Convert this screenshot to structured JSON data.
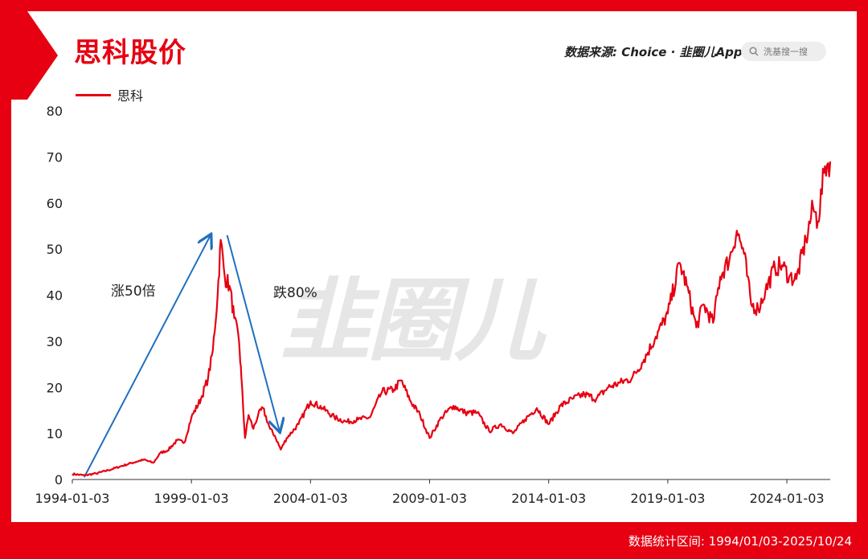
{
  "header": {
    "title": "思科股价",
    "source": "数据来源: Choice · 韭圈儿App",
    "search_placeholder": "洗基搜一搜",
    "icons": [
      "search-icon"
    ]
  },
  "footer": {
    "range": "数据统计区间: 1994/01/03-2025/10/24"
  },
  "watermark": "韭圈儿",
  "colors": {
    "brand": "#e60012",
    "arrow": "#1f6fbf"
  },
  "chart_data": {
    "type": "line",
    "xlabel": "",
    "ylabel": "",
    "ylim": [
      0,
      80
    ],
    "yticks": [
      0,
      10,
      20,
      30,
      40,
      50,
      60,
      70,
      80
    ],
    "xticks": [
      "1994-01-03",
      "1999-01-03",
      "2004-01-03",
      "2009-01-03",
      "2014-01-03",
      "2019-01-03",
      "2024-01-03"
    ],
    "xlim": [
      1994.0,
      2025.82
    ],
    "legend": "top-left",
    "grid": false,
    "series": [
      {
        "name": "思科",
        "points": [
          [
            1994.0,
            1.2
          ],
          [
            1994.5,
            0.9
          ],
          [
            1995.0,
            1.3
          ],
          [
            1995.5,
            2.0
          ],
          [
            1996.0,
            2.8
          ],
          [
            1996.5,
            3.6
          ],
          [
            1997.0,
            4.3
          ],
          [
            1997.4,
            3.6
          ],
          [
            1997.7,
            5.8
          ],
          [
            1998.0,
            6.3
          ],
          [
            1998.4,
            8.5
          ],
          [
            1998.7,
            8.0
          ],
          [
            1999.0,
            13.5
          ],
          [
            1999.4,
            17.5
          ],
          [
            1999.7,
            22.0
          ],
          [
            1999.9,
            28.0
          ],
          [
            2000.1,
            40.0
          ],
          [
            2000.23,
            52.0
          ],
          [
            2000.4,
            44.0
          ],
          [
            2000.6,
            42.0
          ],
          [
            2000.8,
            35.0
          ],
          [
            2001.0,
            30.0
          ],
          [
            2001.1,
            22.0
          ],
          [
            2001.25,
            9.0
          ],
          [
            2001.4,
            14.0
          ],
          [
            2001.6,
            11.0
          ],
          [
            2001.8,
            14.0
          ],
          [
            2002.0,
            15.5
          ],
          [
            2002.3,
            11.0
          ],
          [
            2002.5,
            9.5
          ],
          [
            2002.75,
            6.5
          ],
          [
            2003.0,
            9.0
          ],
          [
            2003.5,
            12.0
          ],
          [
            2004.0,
            17.0
          ],
          [
            2004.5,
            15.5
          ],
          [
            2005.0,
            13.5
          ],
          [
            2005.5,
            12.5
          ],
          [
            2006.0,
            13.0
          ],
          [
            2006.5,
            13.5
          ],
          [
            2007.0,
            19.0
          ],
          [
            2007.5,
            19.5
          ],
          [
            2007.8,
            21.5
          ],
          [
            2008.2,
            17.0
          ],
          [
            2008.6,
            14.0
          ],
          [
            2009.0,
            9.0
          ],
          [
            2009.5,
            13.5
          ],
          [
            2010.0,
            16.0
          ],
          [
            2010.5,
            14.5
          ],
          [
            2011.0,
            14.5
          ],
          [
            2011.5,
            10.5
          ],
          [
            2012.0,
            12.0
          ],
          [
            2012.5,
            10.0
          ],
          [
            2013.0,
            13.0
          ],
          [
            2013.5,
            15.5
          ],
          [
            2014.0,
            12.0
          ],
          [
            2014.5,
            16.0
          ],
          [
            2015.0,
            17.5
          ],
          [
            2015.5,
            18.5
          ],
          [
            2016.0,
            17.5
          ],
          [
            2016.5,
            20.0
          ],
          [
            2017.0,
            21.0
          ],
          [
            2017.5,
            22.0
          ],
          [
            2018.0,
            26.0
          ],
          [
            2018.5,
            31.0
          ],
          [
            2019.0,
            36.0
          ],
          [
            2019.5,
            47.0
          ],
          [
            2019.8,
            42.0
          ],
          [
            2020.2,
            33.0
          ],
          [
            2020.5,
            38.0
          ],
          [
            2020.9,
            34.0
          ],
          [
            2021.2,
            44.0
          ],
          [
            2021.6,
            48.0
          ],
          [
            2021.9,
            54.0
          ],
          [
            2022.2,
            49.0
          ],
          [
            2022.5,
            38.0
          ],
          [
            2022.8,
            37.0
          ],
          [
            2023.1,
            41.0
          ],
          [
            2023.5,
            46.0
          ],
          [
            2023.8,
            46.5
          ],
          [
            2024.1,
            44.0
          ],
          [
            2024.4,
            43.5
          ],
          [
            2024.8,
            52.0
          ],
          [
            2025.1,
            59.0
          ],
          [
            2025.3,
            56.0
          ],
          [
            2025.6,
            68.0
          ],
          [
            2025.82,
            69.0
          ]
        ]
      }
    ],
    "annotations": [
      {
        "text": "涨50倍",
        "from": [
          1994.5,
          0.5
        ],
        "to": [
          1999.8,
          53.0
        ]
      },
      {
        "text": "跌80%",
        "from": [
          2000.5,
          53.0
        ],
        "to": [
          2002.7,
          10.5
        ]
      }
    ]
  }
}
